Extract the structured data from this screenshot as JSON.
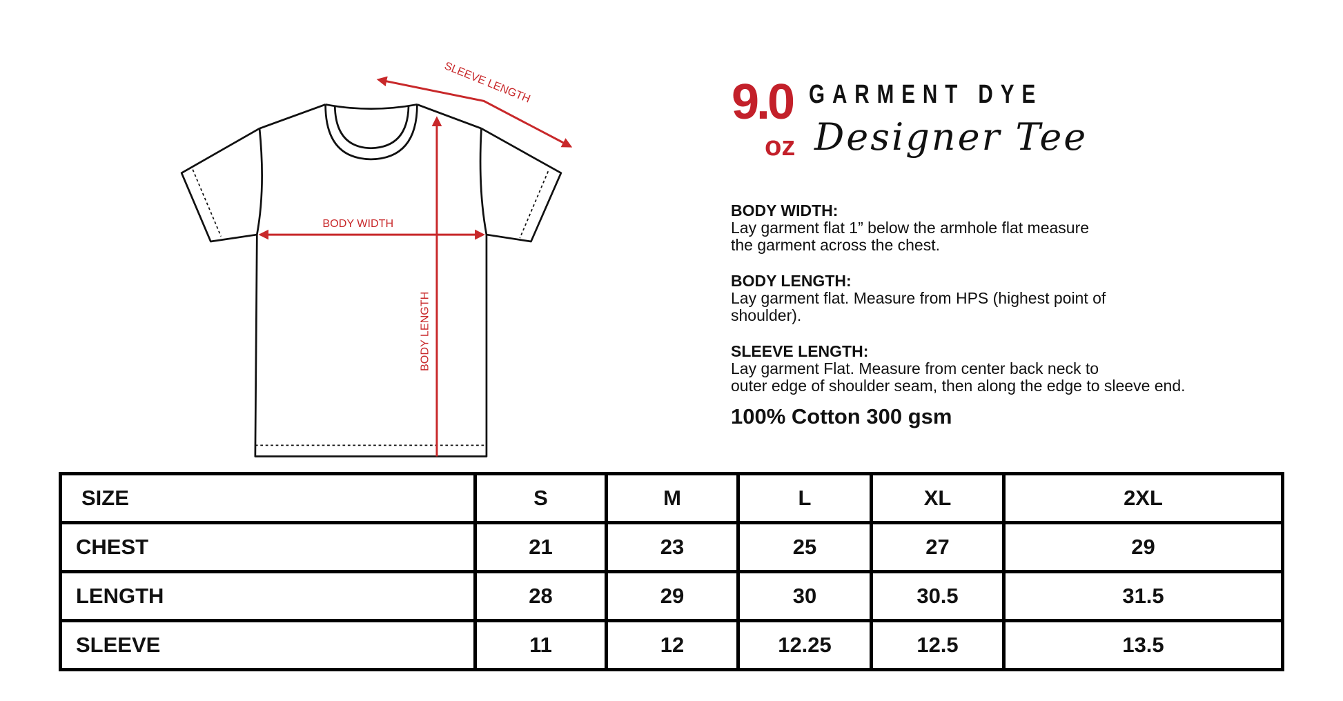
{
  "diagram": {
    "sleeve_length_label": "SLEEVE LENGTH",
    "body_width_label": "BODY WIDTH",
    "body_length_label": "BODY LENGTH",
    "accent_color": "#c8282a"
  },
  "logo": {
    "weight": "9.0",
    "unit": "oz",
    "line1": "GARMENT DYE",
    "line2": "Designer Tee"
  },
  "instructions": [
    {
      "title": "BODY WIDTH:",
      "lines": [
        "Lay garment flat 1” below the armhole flat measure",
        "the garment across the chest."
      ]
    },
    {
      "title": "BODY LENGTH:",
      "lines": [
        "Lay garment flat. Measure from HPS (highest point of",
        "shoulder)."
      ]
    },
    {
      "title": "SLEEVE LENGTH:",
      "lines": [
        "Lay garment Flat. Measure from center back neck to",
        "outer edge of shoulder seam, then along the edge to sleeve end."
      ]
    }
  ],
  "fabric": "100% Cotton  300 gsm",
  "size_table": {
    "header": [
      "SIZE",
      "S",
      "M",
      "L",
      "XL",
      "2XL"
    ],
    "rows": [
      [
        "CHEST",
        "21",
        "23",
        "25",
        "27",
        "29"
      ],
      [
        "LENGTH",
        "28",
        "29",
        "30",
        "30.5",
        "31.5"
      ],
      [
        "SLEEVE",
        "11",
        "12",
        "12.25",
        "12.5",
        "13.5"
      ]
    ]
  }
}
